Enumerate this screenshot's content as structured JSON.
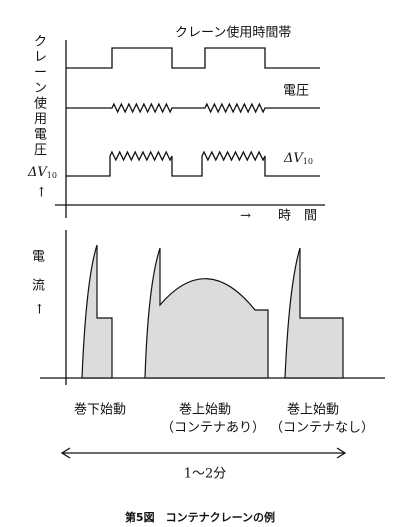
{
  "top_chart": {
    "usage_label": "クレーン使用時間帯",
    "y_label_chars": [
      "ク",
      "レ",
      "ー",
      "ン",
      "使",
      "用",
      "電",
      "圧"
    ],
    "y_symbol": "ΔV",
    "y_subscript": "10",
    "y_arrow": "↑",
    "voltage_label": "電圧",
    "dv_symbol": "ΔV",
    "dv_subscript": "10",
    "x_arrow": "→",
    "x_label": "時　間"
  },
  "bottom_chart": {
    "y_label_chars": [
      "電",
      "流"
    ],
    "y_arrow": "↑",
    "labels": [
      {
        "name": "巻下始動"
      },
      {
        "name": "巻上始動",
        "note": "（コンテナあり）"
      },
      {
        "name": "巻上始動",
        "note": "（コンテナなし）"
      }
    ],
    "duration": "1～2分"
  },
  "caption": "第5図　コンテナクレーンの例"
}
